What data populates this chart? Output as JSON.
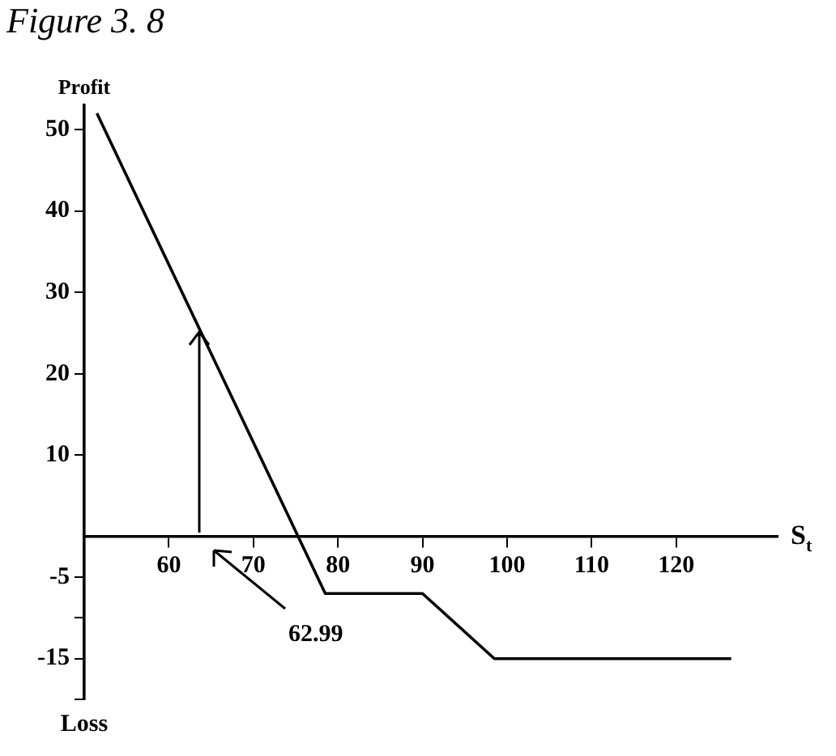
{
  "chart_data": {
    "type": "line",
    "title": "Figure 3. 8",
    "ylabel": "Profit",
    "xlabel": "S$_{t}$",
    "annotations": [
      "62.99",
      "Loss"
    ],
    "x": [
      51.5,
      78.5,
      90,
      98.5,
      126.5
    ],
    "series": [
      {
        "color": "#000000",
        "values": [
          52,
          -7,
          -7,
          -15,
          -15
        ]
      }
    ],
    "xlim": [
      50,
      132
    ],
    "ylim": [
      -20,
      53
    ],
    "xticks": [
      60,
      70,
      80,
      90,
      100,
      110,
      120
    ],
    "yticks": [
      50,
      40,
      30,
      20,
      10,
      -5,
      {
        "value": -10,
        "label": null
      },
      -15,
      {
        "value": -20,
        "label": null
      }
    ],
    "grid": false,
    "legend": false,
    "marker": "none",
    "line_style": "solid"
  }
}
